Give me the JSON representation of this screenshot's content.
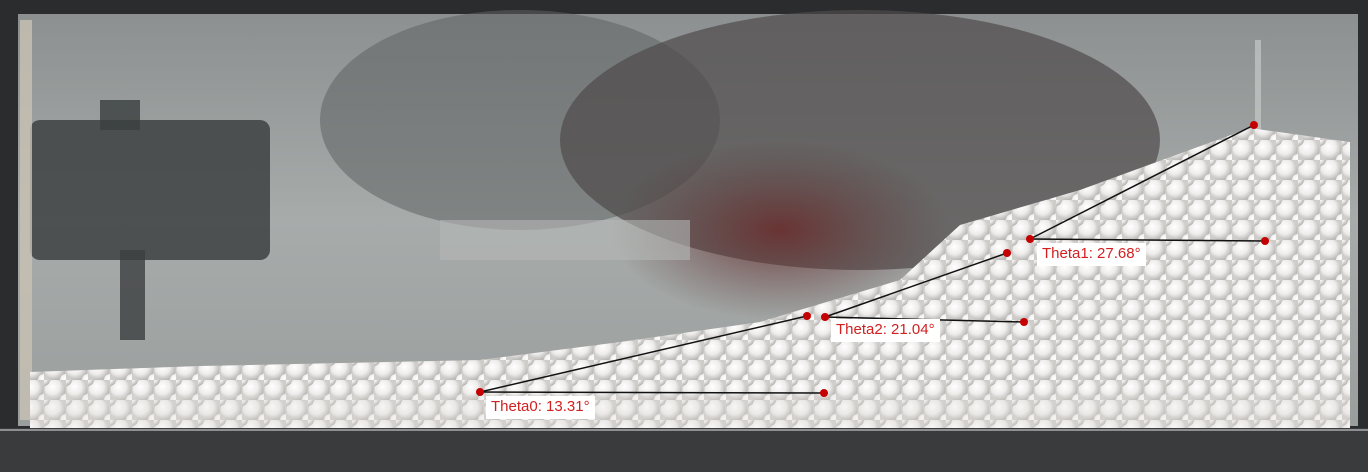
{
  "annotations": [
    {
      "id": "theta0",
      "text": "Theta0: 13.31°",
      "angle_deg": 13.31
    },
    {
      "id": "theta1",
      "text": "Theta1: 27.68°",
      "angle_deg": 27.68
    },
    {
      "id": "theta2",
      "text": "Theta2: 21.04°",
      "angle_deg": 21.04
    }
  ],
  "colors": {
    "marker": "#c40000",
    "line": "#111111",
    "label_text": "#d21f1f",
    "label_bg": "#ffffff",
    "bead": "#f4f2ee"
  }
}
